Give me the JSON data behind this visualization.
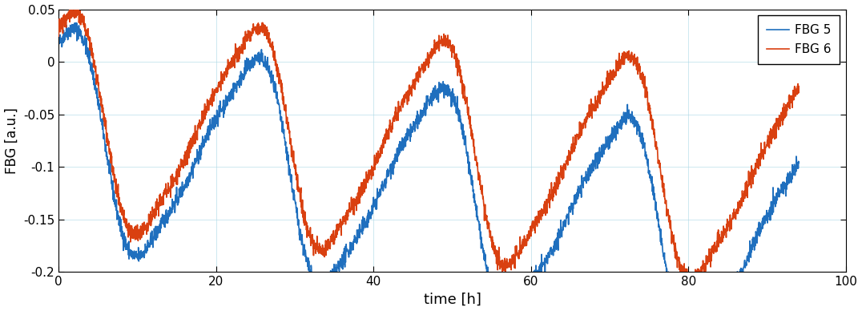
{
  "title": "",
  "xlabel": "time [h]",
  "ylabel": "FBG [a.u.]",
  "xlim": [
    0,
    100
  ],
  "ylim": [
    -0.2,
    0.05
  ],
  "yticks": [
    0.05,
    0.0,
    -0.05,
    -0.1,
    -0.15,
    -0.2
  ],
  "xticks": [
    0,
    20,
    40,
    60,
    80,
    100
  ],
  "color_fbg5": "#1f6fbe",
  "color_fbg6": "#d94010",
  "legend_labels": [
    "FBG 5",
    "FBG 6"
  ],
  "grid_color": "#add8e6",
  "figsize": [
    10.76,
    3.88
  ],
  "dpi": 100,
  "seed": 42,
  "n_points": 3000,
  "t_max": 94.0,
  "noise_level": 0.004,
  "linewidth": 1.2
}
